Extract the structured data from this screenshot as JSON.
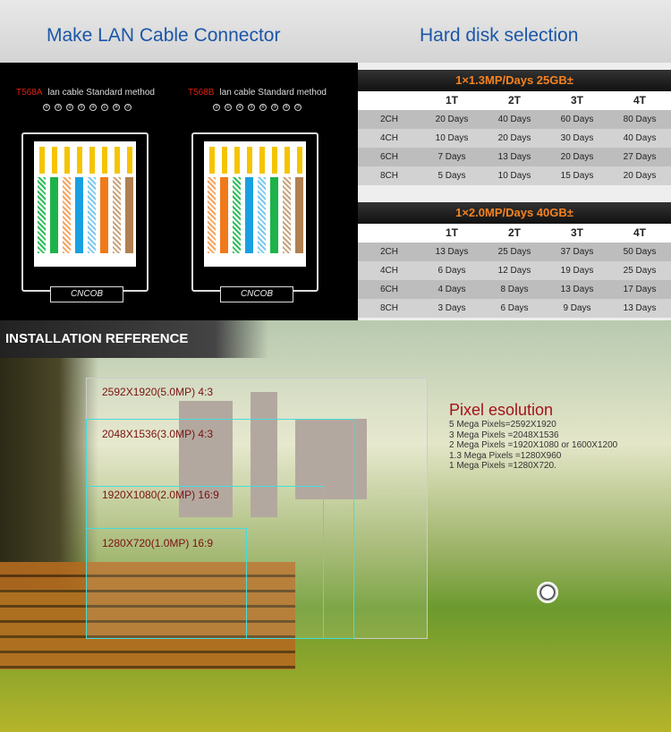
{
  "headings": {
    "left": "Make LAN Cable Connector",
    "right": "Hard disk selection"
  },
  "lan": [
    {
      "standard": "T568A",
      "desc": "lan cable Standard method",
      "logo": "CNCOB",
      "pins": [
        "⑥",
        "③",
        "②",
        "⑤",
        "④",
        "①",
        "⑧",
        "⑦"
      ],
      "wires": [
        "#2dbd5a|s",
        "#1db34a",
        "#f4a460|s",
        "#1aa0e0",
        "#7ec8ef|s",
        "#f07a1a",
        "#c9a27a|s",
        "#b08050"
      ]
    },
    {
      "standard": "T568B",
      "desc": "lan cable Standard method",
      "logo": "CNCOB",
      "pins": [
        "②",
        "①",
        "④",
        "⑤",
        "⑥",
        "③",
        "⑧",
        "⑦"
      ],
      "wires": [
        "#f4a460|s",
        "#f07a1a",
        "#2dbd5a|s",
        "#1aa0e0",
        "#7ec8ef|s",
        "#1db34a",
        "#c9a27a|s",
        "#b08050"
      ]
    }
  ],
  "tables": [
    {
      "title": "1×1.3MP/Days 25GB±",
      "header": [
        "",
        "1T",
        "2T",
        "3T",
        "4T"
      ],
      "rows": [
        [
          "2CH",
          "20 Days",
          "40 Days",
          "60 Days",
          "80 Days"
        ],
        [
          "4CH",
          "10 Days",
          "20 Days",
          "30 Days",
          "40 Days"
        ],
        [
          "6CH",
          "7 Days",
          "13 Days",
          "20 Days",
          "27 Days"
        ],
        [
          "8CH",
          "5 Days",
          "10 Days",
          "15 Days",
          "20 Days"
        ]
      ]
    },
    {
      "title": "1×2.0MP/Days 40GB±",
      "header": [
        "",
        "1T",
        "2T",
        "3T",
        "4T"
      ],
      "rows": [
        [
          "2CH",
          "13 Days",
          "25 Days",
          "37 Days",
          "50 Days"
        ],
        [
          "4CH",
          "6 Days",
          "12 Days",
          "19 Days",
          "25 Days"
        ],
        [
          "6CH",
          "4 Days",
          "8 Days",
          "13 Days",
          "17 Days"
        ],
        [
          "8CH",
          "3 Days",
          "6 Days",
          "9 Days",
          "13 Days"
        ]
      ]
    }
  ],
  "banner": "INSTALLATION REFERENCE",
  "resolutions": [
    "2592X1920(5.0MP)  4:3",
    "2048X1536(3.0MP)  4:3",
    "1920X1080(2.0MP)  16:9",
    "1280X720(1.0MP)  16:9"
  ],
  "pixel": {
    "title": "Pixel esolution",
    "lines": [
      "5 Mega Pixels=2592X1920",
      "3 Mega Pixels =2048X1536",
      "2 Mega Pixels =1920X1080 or 1600X1200",
      "1.3 Mega Pixels =1280X960",
      "1 Mega Pixels =1280X720."
    ]
  }
}
